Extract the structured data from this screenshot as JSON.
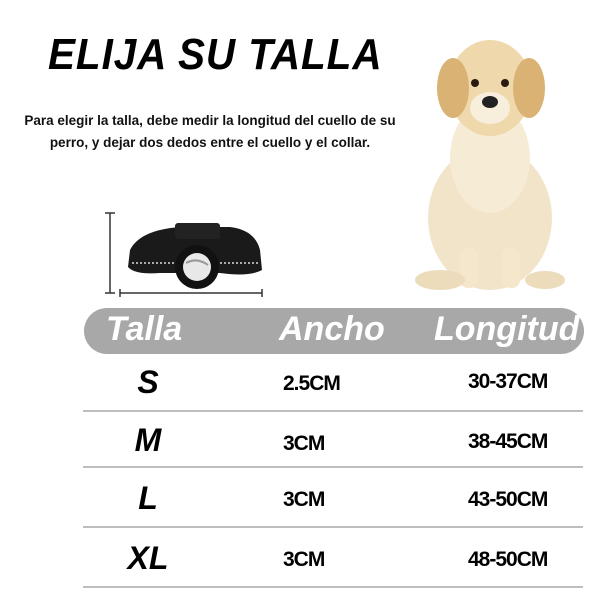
{
  "title": "ELIJA SU TALLA",
  "description": "Para elegir la talla, debe medir la longitud del cuello de su perro, y dejar dos dedos entre el cuello y el collar.",
  "colors": {
    "header_bg": "#a8a8a8",
    "header_text": "#ffffff",
    "divider": "#bdbdbd"
  },
  "table": {
    "headers": [
      "Talla",
      "Ancho",
      "Longitud"
    ],
    "rows": [
      {
        "talla": "S",
        "ancho": "2.5CM",
        "longitud": "30-37CM"
      },
      {
        "talla": "M",
        "ancho": "3CM",
        "longitud": "38-45CM"
      },
      {
        "talla": "L",
        "ancho": "3CM",
        "longitud": "43-50CM"
      },
      {
        "talla": "XL",
        "ancho": "3CM",
        "longitud": "48-50CM"
      }
    ]
  }
}
